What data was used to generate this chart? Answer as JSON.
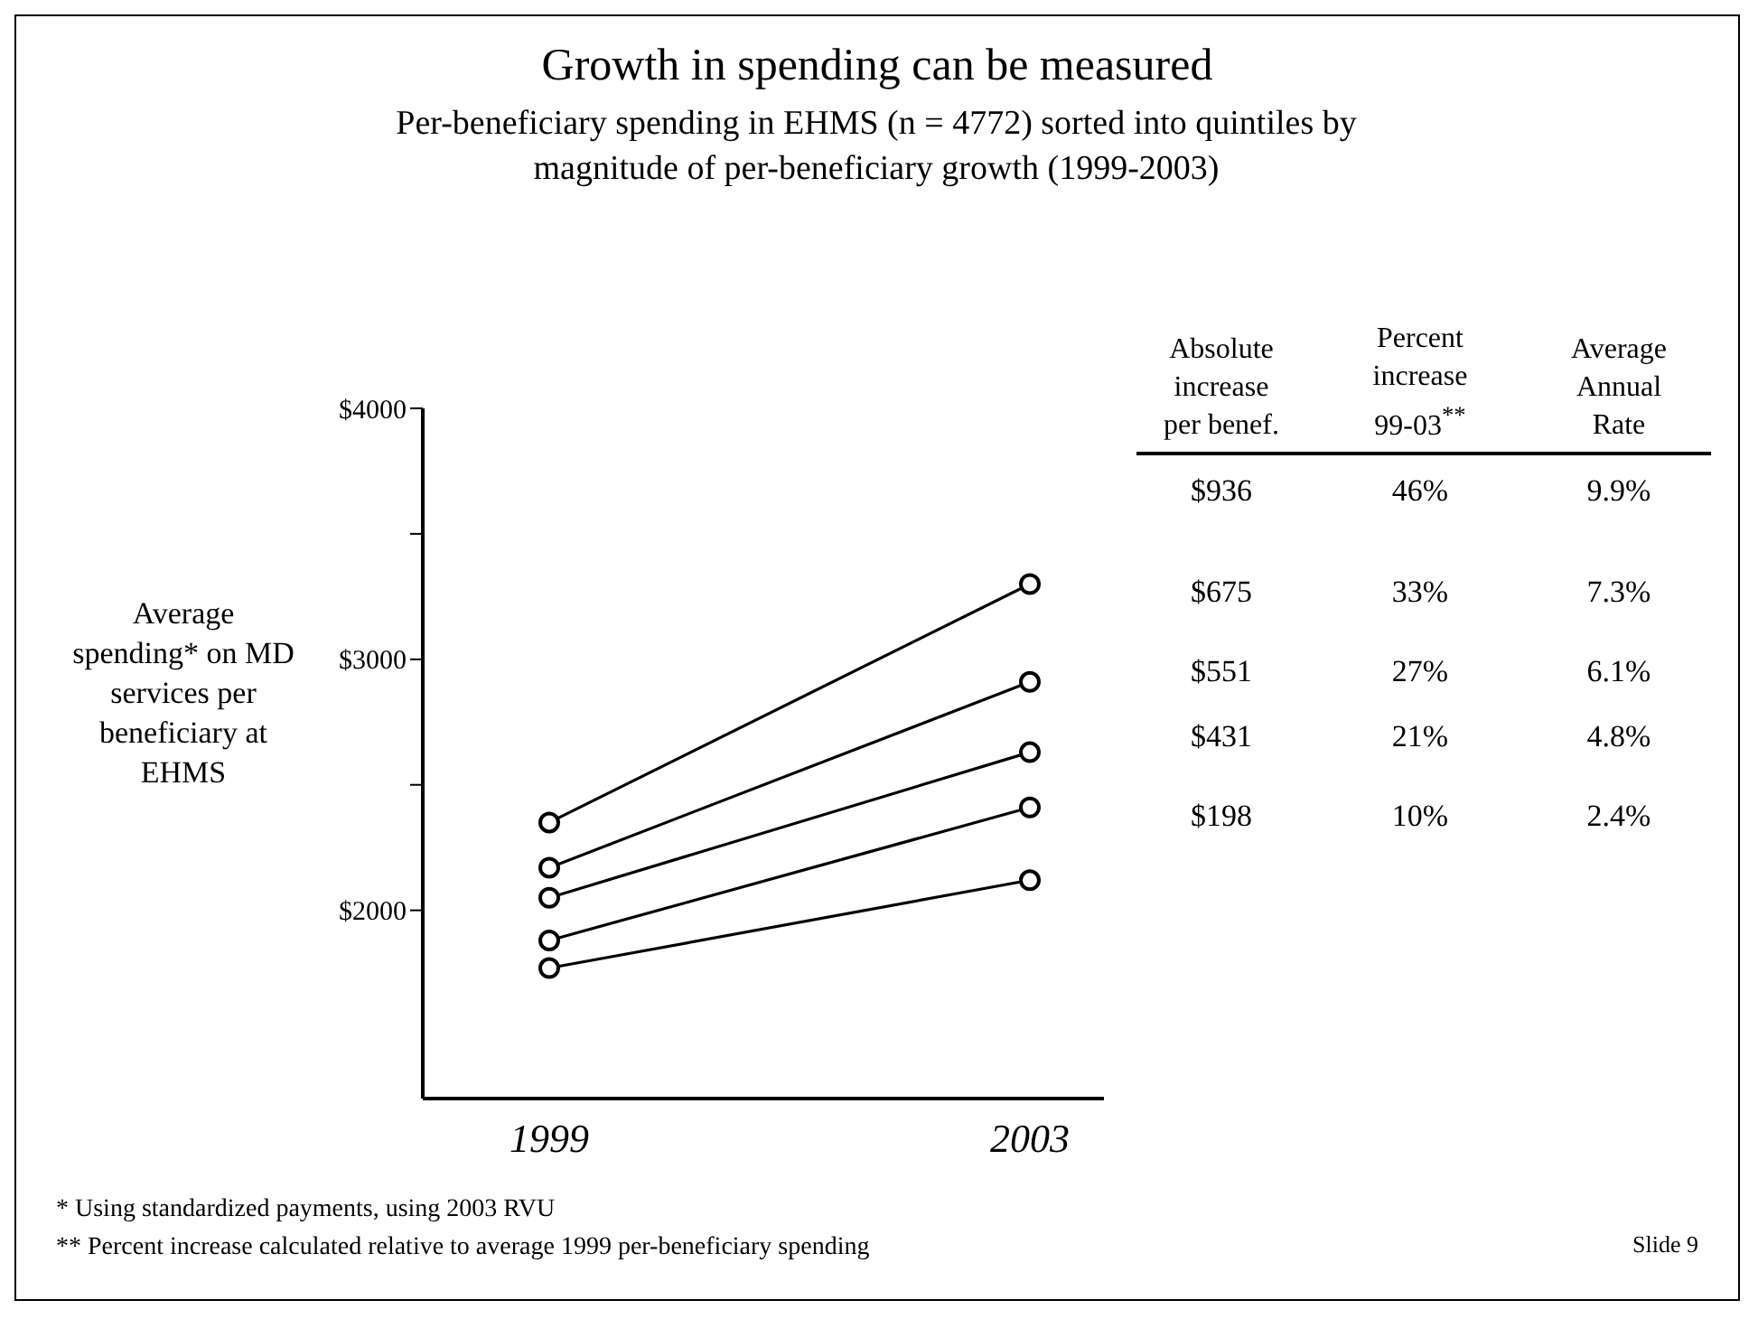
{
  "chart_data": {
    "type": "line",
    "title": "Growth in spending can be measured",
    "subtitle": "Per-beneficiary spending in EHMS (n = 4772) sorted into quintiles by magnitude of per-beneficiary growth (1999-2003)",
    "ylabel": "Average spending* on MD services per beneficiary at EHMS",
    "categories": [
      "1999",
      "2003"
    ],
    "series": [
      {
        "color": "#000000",
        "values": [
          1770,
          2120
        ]
      },
      {
        "color": "#000000",
        "values": [
          1880,
          2410
        ]
      },
      {
        "color": "#000000",
        "values": [
          2050,
          2630
        ]
      },
      {
        "color": "#000000",
        "values": [
          2170,
          2910
        ]
      },
      {
        "color": "#000000",
        "values": [
          2350,
          3300
        ]
      }
    ],
    "ylim": [
      1250,
      4000
    ],
    "yticks": [
      {
        "value": 2000,
        "label": "$2000"
      },
      {
        "value": 2500,
        "label": null
      },
      {
        "value": 3000,
        "label": "$3000"
      },
      {
        "value": 3500,
        "label": null
      },
      {
        "value": 4000,
        "label": "$4000"
      }
    ],
    "marker": "circle",
    "line_style": "solid",
    "legend": false,
    "grid": false,
    "annotations": [
      "Absolute increase per benef.",
      "Percent increase 99-03$^{**}$",
      "Average Annual Rate",
      "$936",
      "46%",
      "9.9%",
      "$675",
      "33%",
      "7.3%",
      "$551",
      "27%",
      "6.1%",
      "$431",
      "21%",
      "4.8%",
      "$198",
      "10%",
      "2.4%",
      "* Using standardized payments, using 2003 RVU",
      "** Percent increase calculated relative to average 1999 per-beneficiary spending",
      "Slide 9"
    ]
  }
}
